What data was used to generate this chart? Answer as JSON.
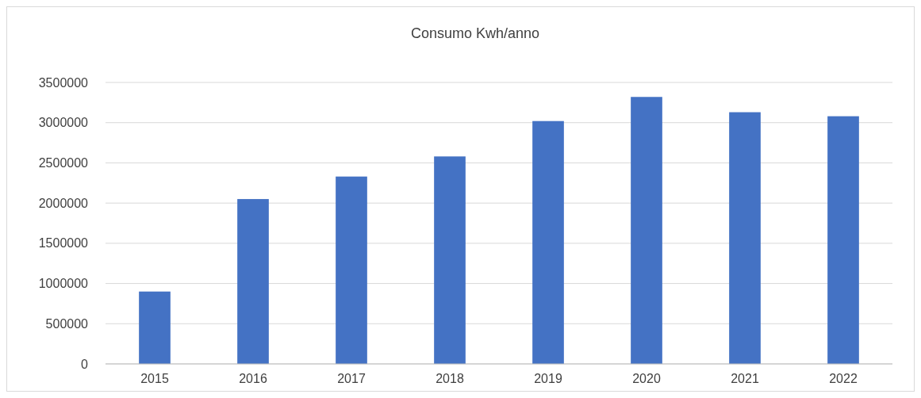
{
  "chart_data": {
    "type": "bar",
    "title": "Consumo Kwh/anno",
    "categories": [
      "2015",
      "2016",
      "2017",
      "2018",
      "2019",
      "2020",
      "2021",
      "2022"
    ],
    "values": [
      900000,
      2050000,
      2330000,
      2580000,
      3020000,
      3320000,
      3130000,
      3080000
    ],
    "color": "#4472c4",
    "ylim": [
      0,
      3500000
    ],
    "yticks": [
      0,
      500000,
      1000000,
      1500000,
      2000000,
      2500000,
      3000000,
      3500000
    ],
    "grid": "y"
  }
}
